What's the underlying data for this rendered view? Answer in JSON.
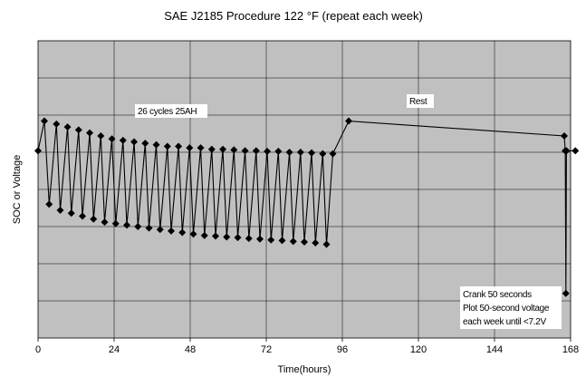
{
  "chart_data": {
    "type": "line",
    "title": "SAE J2185 Procedure 122   °F (repeat each week)",
    "xlabel": "Time(hours)",
    "ylabel": "SOC   or   Voltage",
    "xlim": [
      0,
      168
    ],
    "ylim": [
      0,
      100
    ],
    "x_ticks": [
      0,
      24,
      48,
      72,
      96,
      120,
      144,
      168
    ],
    "x_tick_labels": [
      "0",
      "24",
      "48",
      "72",
      "96",
      "120",
      "144",
      "168"
    ],
    "y_tick_labels_visible": false,
    "grid": true,
    "legend": "none",
    "annotations": {
      "cycles": "26 cycles 25AH",
      "rest": "Rest",
      "crank_line1": "Crank 50 seconds",
      "crank_line2": "Plot 50-second voltage",
      "crank_line3": "each week until <7.2V"
    },
    "colors": {
      "plot_background": "#c0c0c0",
      "series": "#000000",
      "gridline": "#000000"
    },
    "series": [
      {
        "points": [
          [
            0,
            63
          ],
          [
            2,
            73
          ],
          [
            3.5,
            45
          ],
          [
            5.8,
            72
          ],
          [
            7,
            43
          ],
          [
            9.3,
            71
          ],
          [
            10.5,
            42
          ],
          [
            12.8,
            70
          ],
          [
            14,
            41
          ],
          [
            16.3,
            69
          ],
          [
            17.5,
            40
          ],
          [
            19.8,
            68
          ],
          [
            21,
            39
          ],
          [
            23.3,
            67
          ],
          [
            24.5,
            38.5
          ],
          [
            26.8,
            66.5
          ],
          [
            28,
            38
          ],
          [
            30.3,
            66
          ],
          [
            31.5,
            37.5
          ],
          [
            33.8,
            65.5
          ],
          [
            35,
            37
          ],
          [
            37.3,
            65
          ],
          [
            38.5,
            36.5
          ],
          [
            40.8,
            64.5
          ],
          [
            42,
            36
          ],
          [
            44.3,
            64.5
          ],
          [
            45.5,
            35.5
          ],
          [
            47.8,
            64
          ],
          [
            49,
            35
          ],
          [
            51.3,
            64
          ],
          [
            52.5,
            34.5
          ],
          [
            54.8,
            63.5
          ],
          [
            56,
            34.3
          ],
          [
            58.3,
            63.5
          ],
          [
            59.5,
            34
          ],
          [
            61.8,
            63.3
          ],
          [
            63,
            33.8
          ],
          [
            65.3,
            63
          ],
          [
            66.5,
            33.5
          ],
          [
            68.8,
            63
          ],
          [
            70,
            33.3
          ],
          [
            72.3,
            62.8
          ],
          [
            73.5,
            33
          ],
          [
            75.8,
            62.8
          ],
          [
            77,
            32.8
          ],
          [
            79.3,
            62.5
          ],
          [
            80.5,
            32.5
          ],
          [
            82.8,
            62.5
          ],
          [
            84,
            32.3
          ],
          [
            86.3,
            62.3
          ],
          [
            87.5,
            32
          ],
          [
            89.8,
            62
          ],
          [
            91,
            31.5
          ],
          [
            93,
            62
          ],
          [
            98,
            73
          ],
          [
            166,
            68
          ],
          [
            166.3,
            63
          ],
          [
            166.5,
            15
          ],
          [
            166.7,
            63
          ],
          [
            169.5,
            63
          ]
        ]
      }
    ]
  }
}
